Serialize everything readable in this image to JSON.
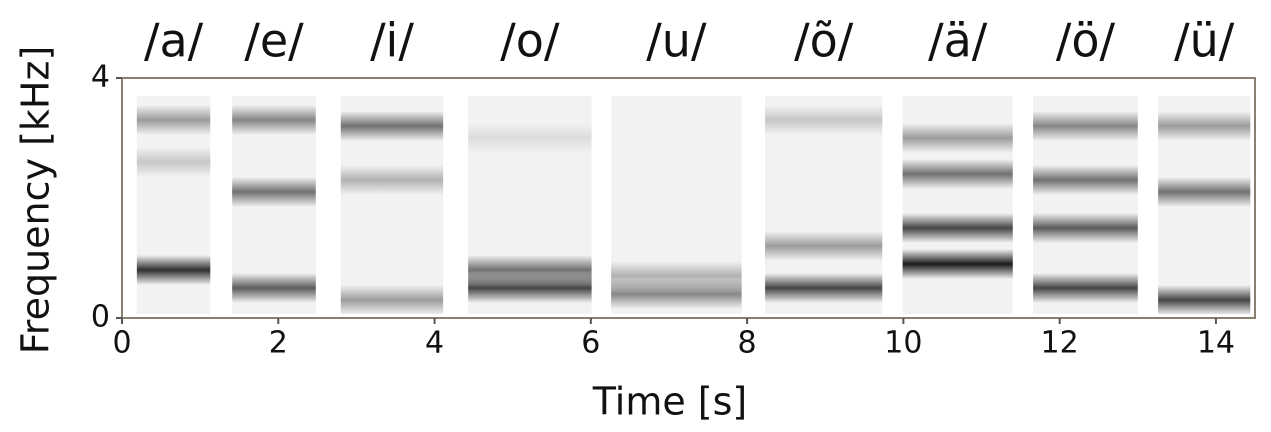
{
  "chart_data": {
    "type": "spectrogram",
    "xlabel": "Time [s]",
    "ylabel": "Frequency [kHz]",
    "xlim": [
      0,
      14.5
    ],
    "ylim": [
      0,
      4
    ],
    "xticks": [
      0,
      2,
      4,
      6,
      8,
      10,
      12,
      14
    ],
    "yticks": [
      0,
      4
    ],
    "color": "#1a1a1a",
    "segments": [
      {
        "label": "/a/",
        "start": 0.19,
        "end": 1.13,
        "formants": [
          {
            "freq": 0.8,
            "level": 0.9
          },
          {
            "freq": 2.6,
            "level": 0.2
          },
          {
            "freq": 3.3,
            "level": 0.4
          }
        ]
      },
      {
        "label": "/e/",
        "start": 1.41,
        "end": 2.48,
        "formants": [
          {
            "freq": 0.5,
            "level": 0.7
          },
          {
            "freq": 2.1,
            "level": 0.6
          },
          {
            "freq": 3.3,
            "level": 0.5
          }
        ]
      },
      {
        "label": "/i/",
        "start": 2.8,
        "end": 4.11,
        "formants": [
          {
            "freq": 0.3,
            "level": 0.4
          },
          {
            "freq": 2.3,
            "level": 0.3
          },
          {
            "freq": 3.2,
            "level": 0.6
          }
        ]
      },
      {
        "label": "/o/",
        "start": 4.43,
        "end": 6.01,
        "formants": [
          {
            "freq": 0.5,
            "level": 0.8
          },
          {
            "freq": 0.8,
            "level": 0.6
          },
          {
            "freq": 3.0,
            "level": 0.1
          }
        ]
      },
      {
        "label": "/u/",
        "start": 6.26,
        "end": 7.93,
        "formants": [
          {
            "freq": 0.4,
            "level": 0.5
          },
          {
            "freq": 0.7,
            "level": 0.3
          }
        ]
      },
      {
        "label": "/õ/",
        "start": 8.23,
        "end": 9.73,
        "formants": [
          {
            "freq": 0.5,
            "level": 0.8
          },
          {
            "freq": 1.2,
            "level": 0.4
          },
          {
            "freq": 3.3,
            "level": 0.2
          }
        ]
      },
      {
        "label": "/ä/",
        "start": 9.99,
        "end": 11.4,
        "formants": [
          {
            "freq": 0.9,
            "level": 1.0
          },
          {
            "freq": 1.5,
            "level": 0.8
          },
          {
            "freq": 2.4,
            "level": 0.6
          },
          {
            "freq": 3.0,
            "level": 0.4
          }
        ]
      },
      {
        "label": "/ö/",
        "start": 11.66,
        "end": 13.0,
        "formants": [
          {
            "freq": 0.5,
            "level": 0.8
          },
          {
            "freq": 1.5,
            "level": 0.7
          },
          {
            "freq": 2.3,
            "level": 0.6
          },
          {
            "freq": 3.2,
            "level": 0.5
          }
        ]
      },
      {
        "label": "/ü/",
        "start": 13.26,
        "end": 14.44,
        "formants": [
          {
            "freq": 0.3,
            "level": 0.8
          },
          {
            "freq": 2.1,
            "level": 0.6
          },
          {
            "freq": 3.2,
            "level": 0.4
          }
        ]
      }
    ]
  }
}
